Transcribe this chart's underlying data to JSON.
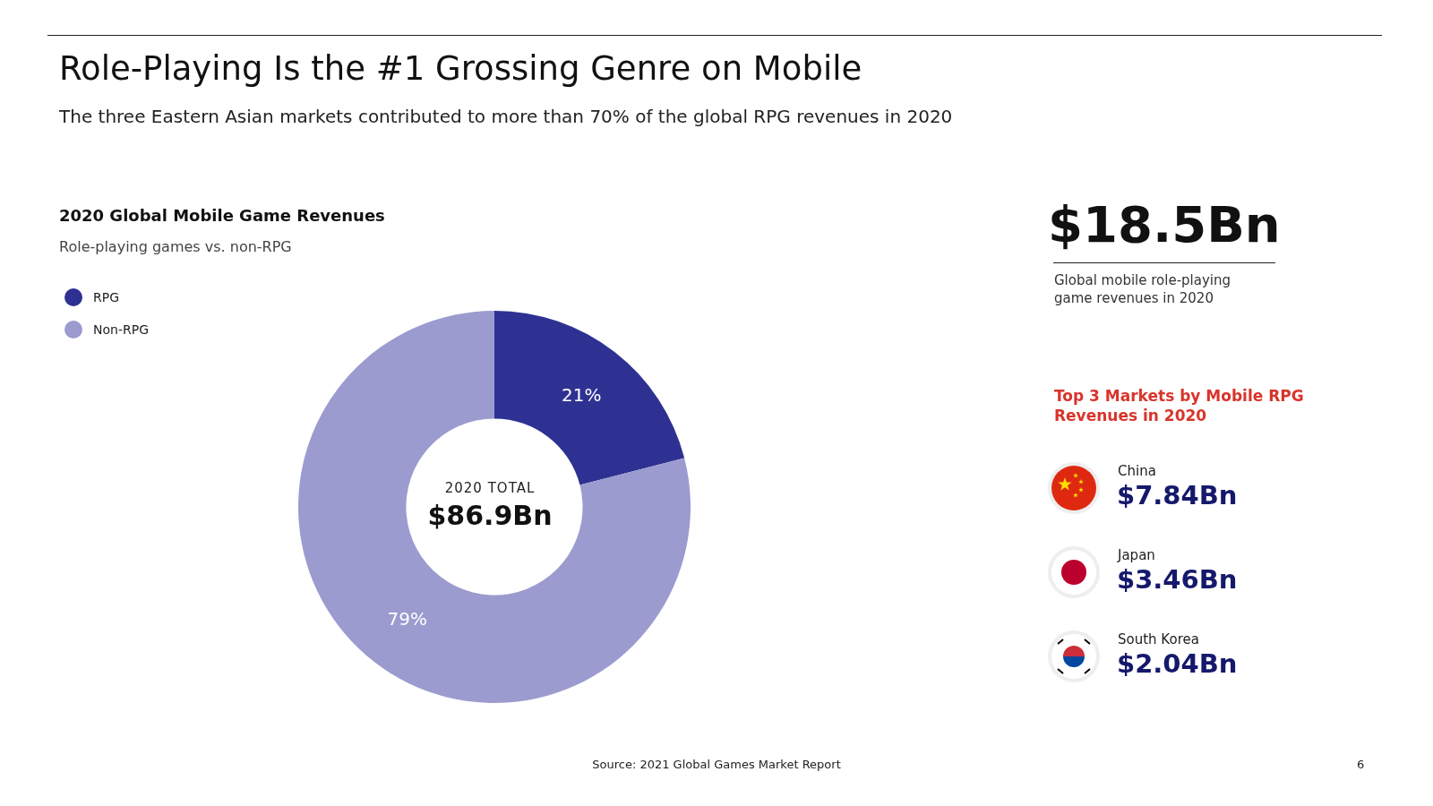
{
  "chart_data": [
    {
      "type": "donut",
      "title": "Role-Playing Is the #1 Grossing Genre on Mobile",
      "subtitle": "The three Eastern Asian markets contributed to more than 70% of the global RPG revenues in 2020",
      "categories": [
        "RPG",
        "Non-RPG"
      ],
      "values": [
        21,
        79
      ],
      "colors": [
        "#2e3192",
        "#9b9bcf"
      ],
      "value_labels": [
        "21%",
        "79%"
      ],
      "legend": "top left",
      "annotations": [
        "2020 Global Mobile Game Revenues",
        "Role-playing games vs. non-RPG",
        "2020 TOTAL",
        "$86.9Bn",
        "Source: 2021 Global Games Market Report",
        "6"
      ]
    },
    {
      "type": "other",
      "title": "$18.5Bn",
      "subtitle": "Global mobile role-playing game revenues in 2020",
      "annotations": [
        "Top 3 Markets by Mobile RPG Revenues in 2020",
        "China",
        "$7.84Bn",
        "Japan",
        "$3.46Bn",
        "South Korea",
        "$2.04Bn"
      ]
    }
  ]
}
